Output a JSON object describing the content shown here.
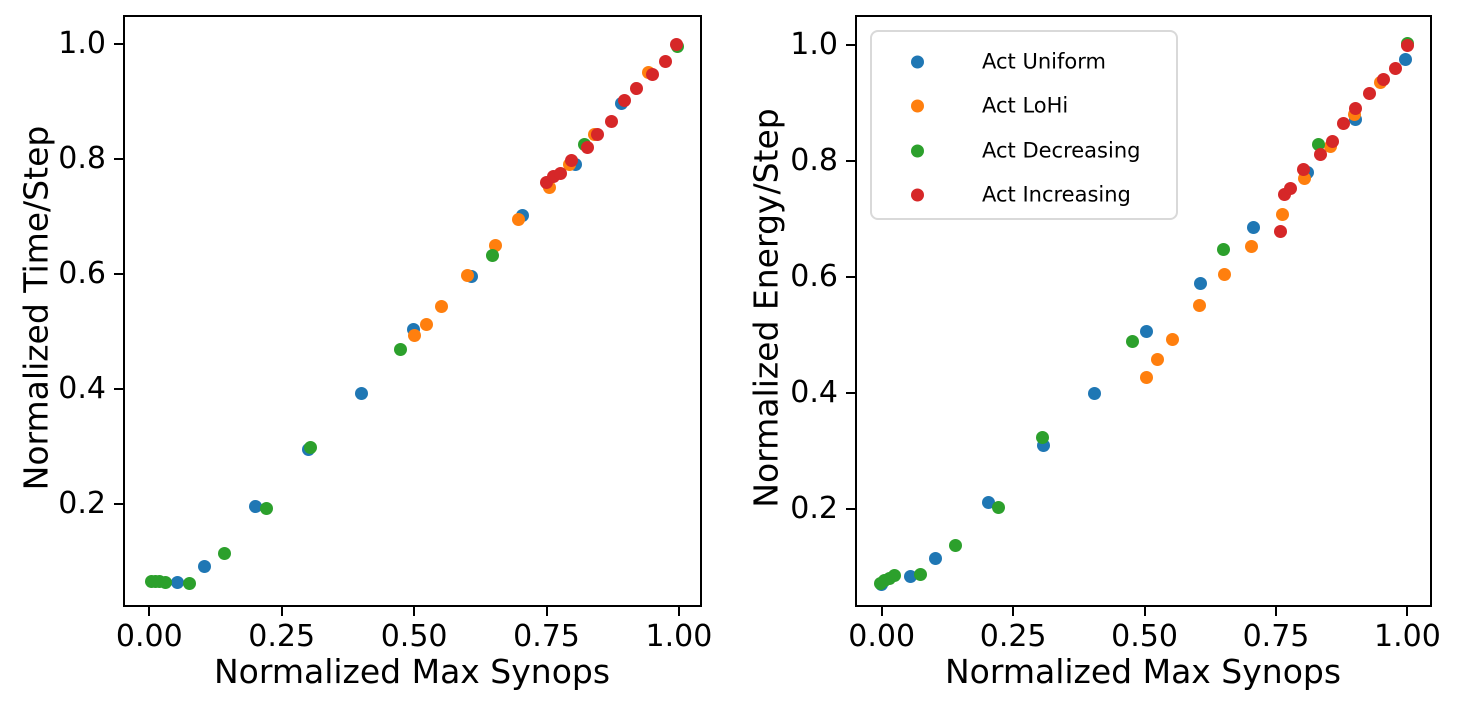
{
  "figure": {
    "background": "#ffffff",
    "text_color": "#000000"
  },
  "chart_data": [
    {
      "type": "scatter",
      "panel": "left",
      "title": "",
      "xlabel": "Normalized Max Synops",
      "ylabel": "Normalized Time/Step",
      "xlim": [
        -0.05,
        1.045
      ],
      "ylim": [
        0.02,
        1.05
      ],
      "grid": false,
      "legend_position": "none",
      "xticks": [
        0.0,
        0.25,
        0.5,
        0.75,
        1.0
      ],
      "xtick_labels": [
        "0.00",
        "0.25",
        "0.50",
        "0.75",
        "1.00"
      ],
      "yticks": [
        0.2,
        0.4,
        0.6,
        0.8,
        1.0
      ],
      "ytick_labels": [
        "0.2",
        "0.4",
        "0.6",
        "0.8",
        "1.0"
      ],
      "series": [
        {
          "name": "Act Uniform",
          "color": "#1f77b4",
          "points": [
            [
              0.053,
              0.064
            ],
            [
              0.104,
              0.091
            ],
            [
              0.201,
              0.195
            ],
            [
              0.3,
              0.294
            ],
            [
              0.401,
              0.392
            ],
            [
              0.499,
              0.504
            ],
            [
              0.608,
              0.595
            ],
            [
              0.705,
              0.701
            ],
            [
              0.804,
              0.791
            ],
            [
              0.892,
              0.896
            ]
          ]
        },
        {
          "name": "Act LoHi",
          "color": "#ff7f0e",
          "points": [
            [
              0.5,
              0.493
            ],
            [
              0.523,
              0.513
            ],
            [
              0.551,
              0.543
            ],
            [
              0.6,
              0.598
            ],
            [
              0.653,
              0.65
            ],
            [
              0.697,
              0.694
            ],
            [
              0.755,
              0.751
            ],
            [
              0.793,
              0.79
            ],
            [
              0.841,
              0.842
            ],
            [
              0.943,
              0.95
            ]
          ]
        },
        {
          "name": "Act Decreasing",
          "color": "#2ca02c",
          "points": [
            [
              0.005,
              0.065
            ],
            [
              0.012,
              0.065
            ],
            [
              0.02,
              0.065
            ],
            [
              0.03,
              0.064
            ],
            [
              0.076,
              0.061
            ],
            [
              0.142,
              0.114
            ],
            [
              0.222,
              0.192
            ],
            [
              0.305,
              0.298
            ],
            [
              0.474,
              0.468
            ],
            [
              0.648,
              0.633
            ],
            [
              0.821,
              0.826
            ],
            [
              0.997,
              0.996
            ]
          ]
        },
        {
          "name": "Act Increasing",
          "color": "#d62728",
          "points": [
            [
              0.75,
              0.76
            ],
            [
              0.763,
              0.769
            ],
            [
              0.777,
              0.775
            ],
            [
              0.798,
              0.797
            ],
            [
              0.828,
              0.82
            ],
            [
              0.846,
              0.843
            ],
            [
              0.873,
              0.866
            ],
            [
              0.897,
              0.901
            ],
            [
              0.92,
              0.922
            ],
            [
              0.951,
              0.947
            ],
            [
              0.974,
              0.969
            ],
            [
              0.995,
              1.0
            ]
          ]
        }
      ]
    },
    {
      "type": "scatter",
      "panel": "right",
      "title": "",
      "xlabel": "Normalized Max Synops",
      "ylabel": "Normalized Energy/Step",
      "xlim": [
        -0.05,
        1.045
      ],
      "ylim": [
        0.02,
        1.05
      ],
      "grid": false,
      "legend_position": "upper left",
      "xticks": [
        0.0,
        0.25,
        0.5,
        0.75,
        1.0
      ],
      "xtick_labels": [
        "0.00",
        "0.25",
        "0.50",
        "0.75",
        "1.00"
      ],
      "yticks": [
        0.2,
        0.4,
        0.6,
        0.8,
        1.0
      ],
      "ytick_labels": [
        "0.2",
        "0.4",
        "0.6",
        "0.8",
        "1.0"
      ],
      "series": [
        {
          "name": "Act Uniform",
          "color": "#1f77b4",
          "points": [
            [
              0.0,
              0.07
            ],
            [
              0.054,
              0.083
            ],
            [
              0.103,
              0.114
            ],
            [
              0.203,
              0.211
            ],
            [
              0.307,
              0.31
            ],
            [
              0.404,
              0.4
            ],
            [
              0.503,
              0.506
            ],
            [
              0.607,
              0.588
            ],
            [
              0.707,
              0.686
            ],
            [
              0.81,
              0.781
            ],
            [
              0.902,
              0.871
            ],
            [
              0.997,
              0.975
            ]
          ]
        },
        {
          "name": "Act LoHi",
          "color": "#ff7f0e",
          "points": [
            [
              0.504,
              0.426
            ],
            [
              0.524,
              0.457
            ],
            [
              0.553,
              0.493
            ],
            [
              0.604,
              0.551
            ],
            [
              0.653,
              0.605
            ],
            [
              0.704,
              0.652
            ],
            [
              0.762,
              0.707
            ],
            [
              0.805,
              0.77
            ],
            [
              0.853,
              0.825
            ],
            [
              0.899,
              0.88
            ],
            [
              0.948,
              0.935
            ]
          ]
        },
        {
          "name": "Act Decreasing",
          "color": "#2ca02c",
          "points": [
            [
              -0.003,
              0.072
            ],
            [
              0.006,
              0.076
            ],
            [
              0.015,
              0.081
            ],
            [
              0.025,
              0.085
            ],
            [
              0.074,
              0.087
            ],
            [
              0.141,
              0.137
            ],
            [
              0.222,
              0.203
            ],
            [
              0.306,
              0.323
            ],
            [
              0.477,
              0.488
            ],
            [
              0.65,
              0.648
            ],
            [
              0.831,
              0.829
            ],
            [
              1.0,
              1.002
            ]
          ]
        },
        {
          "name": "Act Increasing",
          "color": "#d62728",
          "points": [
            [
              0.758,
              0.678
            ],
            [
              0.766,
              0.743
            ],
            [
              0.778,
              0.752
            ],
            [
              0.802,
              0.786
            ],
            [
              0.834,
              0.812
            ],
            [
              0.857,
              0.833
            ],
            [
              0.878,
              0.864
            ],
            [
              0.902,
              0.891
            ],
            [
              0.928,
              0.917
            ],
            [
              0.954,
              0.941
            ],
            [
              0.978,
              0.96
            ],
            [
              1.0,
              1.0
            ]
          ]
        }
      ],
      "legend": {
        "items": [
          {
            "label": "Act Uniform",
            "color": "#1f77b4"
          },
          {
            "label": "Act LoHi",
            "color": "#ff7f0e"
          },
          {
            "label": "Act Decreasing",
            "color": "#2ca02c"
          },
          {
            "label": "Act Increasing",
            "color": "#d62728"
          }
        ]
      }
    }
  ]
}
